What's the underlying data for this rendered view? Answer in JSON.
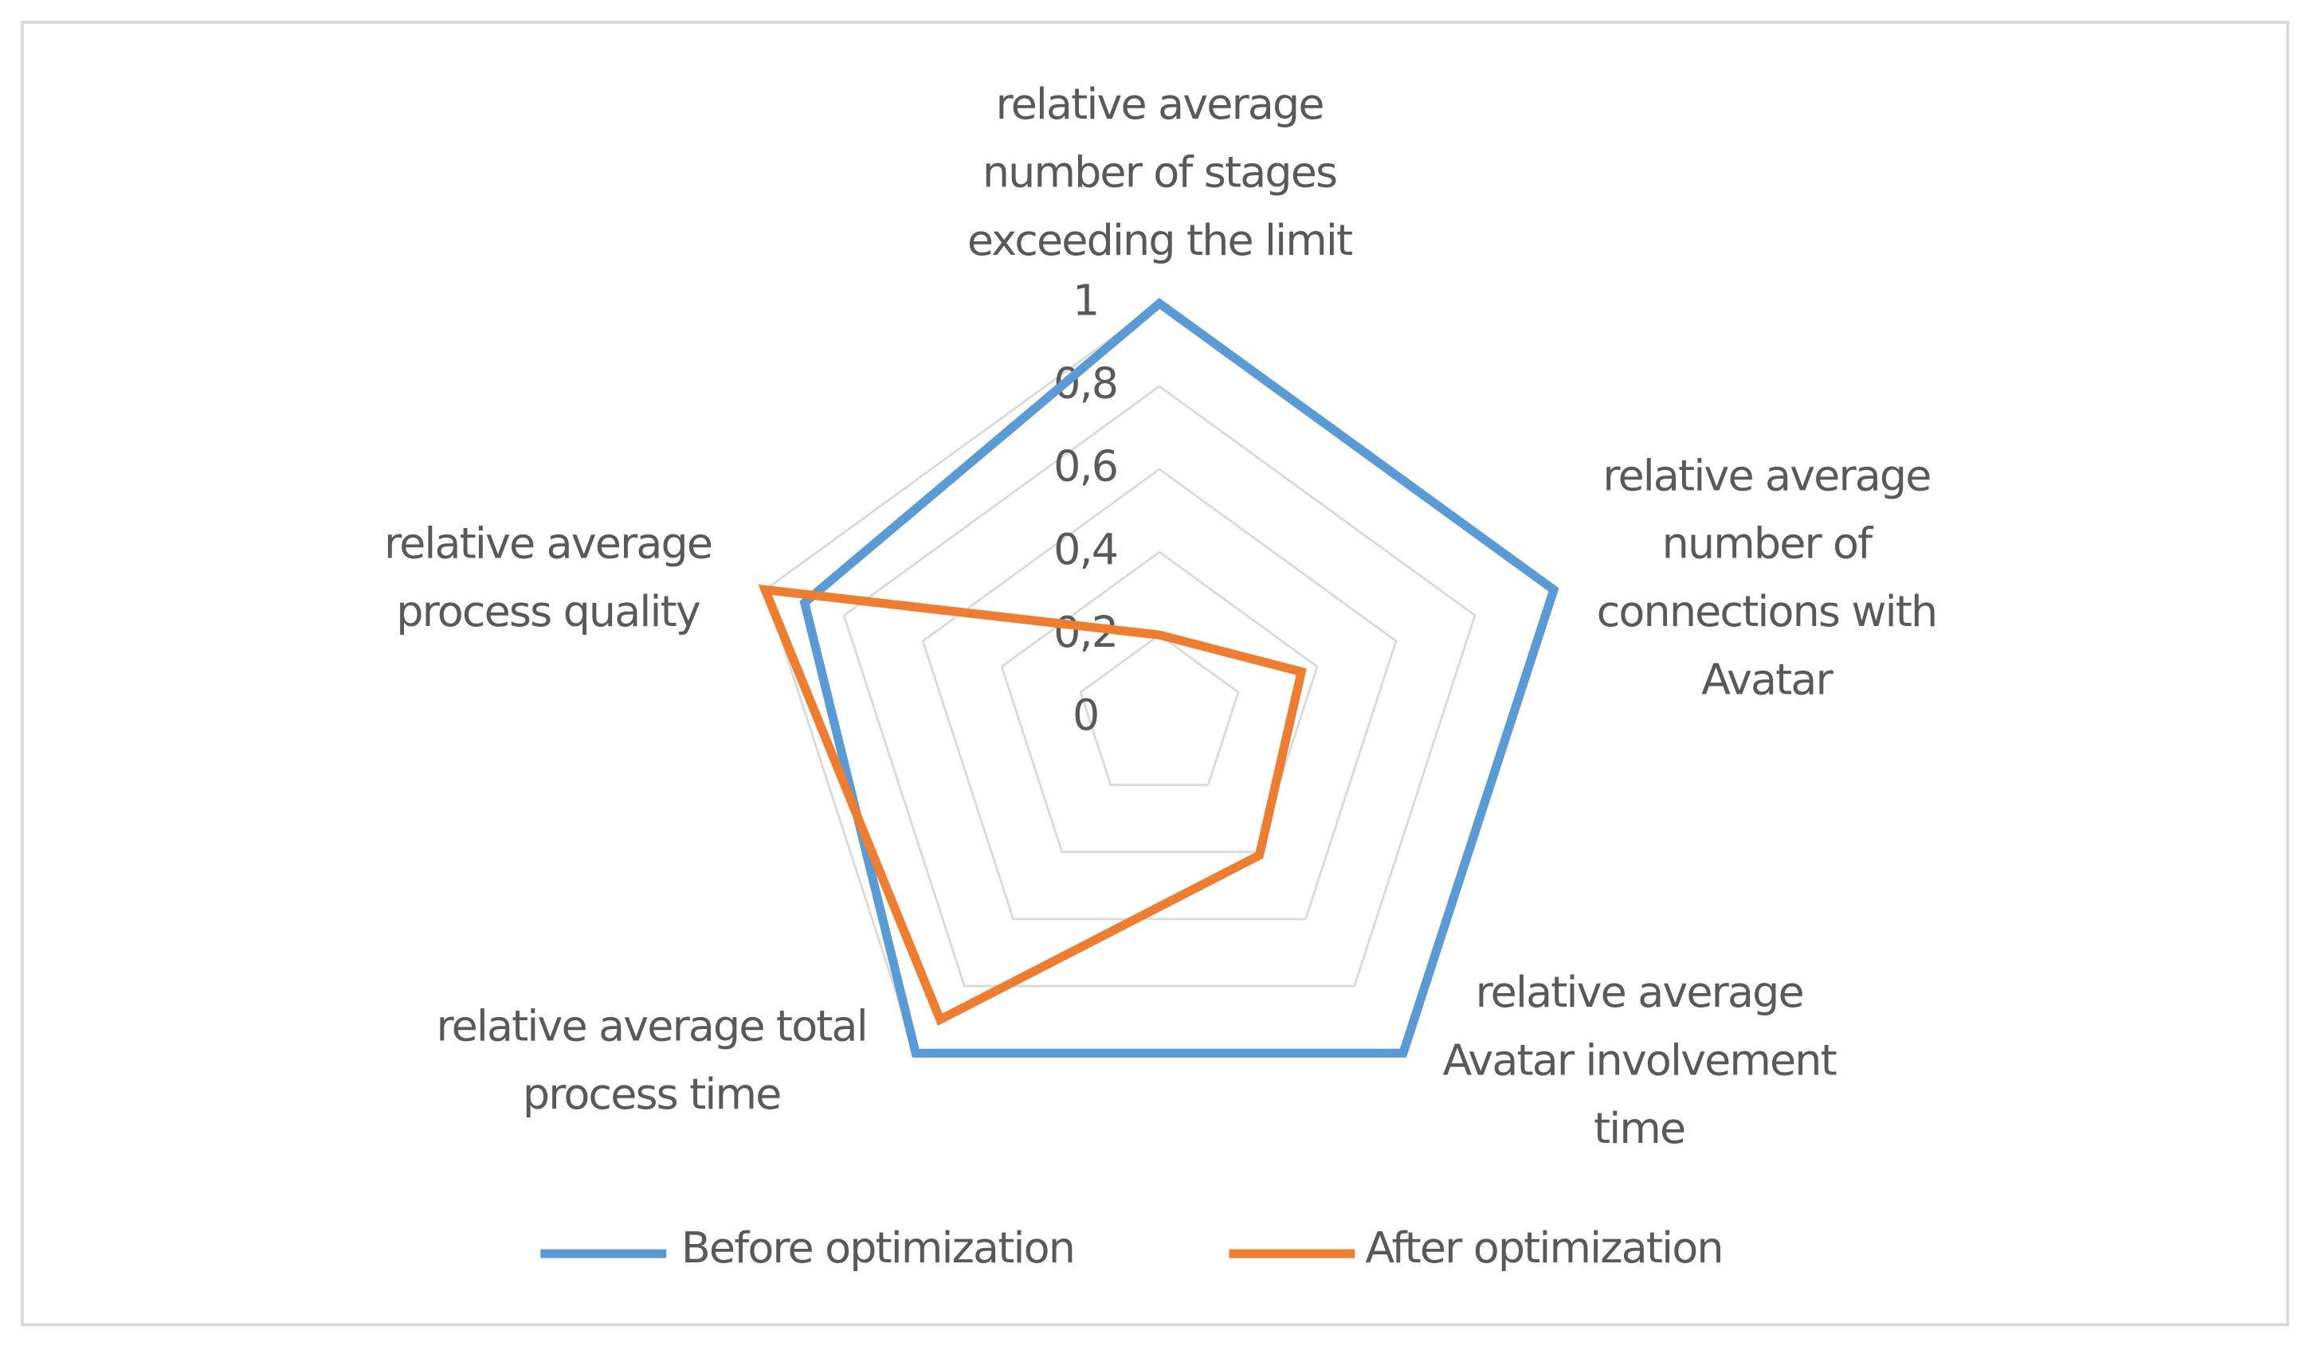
{
  "chart_data": {
    "type": "radar",
    "categories": [
      "relative average number of stages exceeding the limit",
      "relative average number of connections with Avatar",
      "relative average Avatar involvement time",
      "relative average total process time",
      "relative average process quality"
    ],
    "series": [
      {
        "name": "Before optimization",
        "color": "#5b9bd5",
        "values": [
          1,
          1,
          1,
          1,
          0.9
        ]
      },
      {
        "name": "After optimization",
        "color": "#ed7d31",
        "values": [
          0.2,
          0.36,
          0.41,
          0.9,
          1
        ]
      }
    ],
    "ylim": [
      0,
      1
    ],
    "yticks": [
      0,
      {
        "value": 0.2,
        "label": "0,2"
      },
      {
        "value": 0.4,
        "label": "0,4"
      },
      {
        "value": 0.6,
        "label": "0,6"
      },
      {
        "value": 0.8,
        "label": "0,8"
      },
      1
    ],
    "grid": true,
    "legend": "bottom"
  }
}
